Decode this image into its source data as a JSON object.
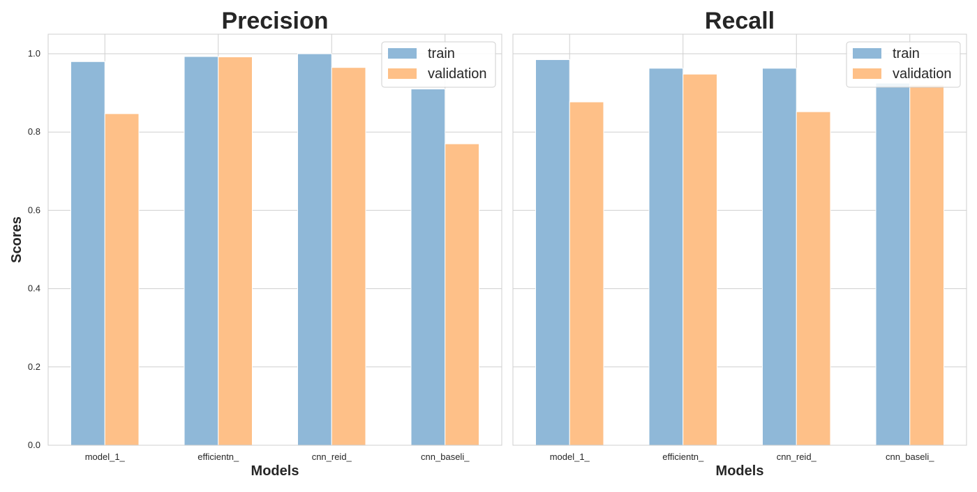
{
  "colors": {
    "train": "#8fb8d8",
    "validation": "#fec088",
    "grid": "#cfcfcf",
    "frame": "#cfcfcf",
    "text": "#262626"
  },
  "chart_data": [
    {
      "type": "bar",
      "title": "Precision",
      "xlabel": "Models",
      "ylabel": "Scores",
      "ylim": [
        0,
        1.05
      ],
      "yticks": [
        "0.0",
        "0.2",
        "0.4",
        "0.6",
        "0.8",
        "1.0"
      ],
      "categories": [
        "model_1_",
        "efficientn_",
        "cnn_reid_",
        "cnn_baseli_"
      ],
      "series": [
        {
          "name": "train",
          "values": [
            0.98,
            0.993,
            1.0,
            0.91
          ]
        },
        {
          "name": "validation",
          "values": [
            0.847,
            0.992,
            0.965,
            0.77
          ]
        }
      ],
      "legend": "top-right",
      "grid": true
    },
    {
      "type": "bar",
      "title": "Recall",
      "xlabel": "Models",
      "ylabel": "",
      "ylim": [
        0,
        1.05
      ],
      "yticks": [
        "0.0",
        "0.2",
        "0.4",
        "0.6",
        "0.8",
        "1.0"
      ],
      "categories": [
        "model_1_",
        "efficientn_",
        "cnn_reid_",
        "cnn_baseli_"
      ],
      "series": [
        {
          "name": "train",
          "values": [
            0.985,
            0.963,
            0.963,
            0.925
          ]
        },
        {
          "name": "validation",
          "values": [
            0.877,
            0.948,
            0.852,
            0.92
          ]
        }
      ],
      "legend": "top-right",
      "grid": true
    }
  ]
}
